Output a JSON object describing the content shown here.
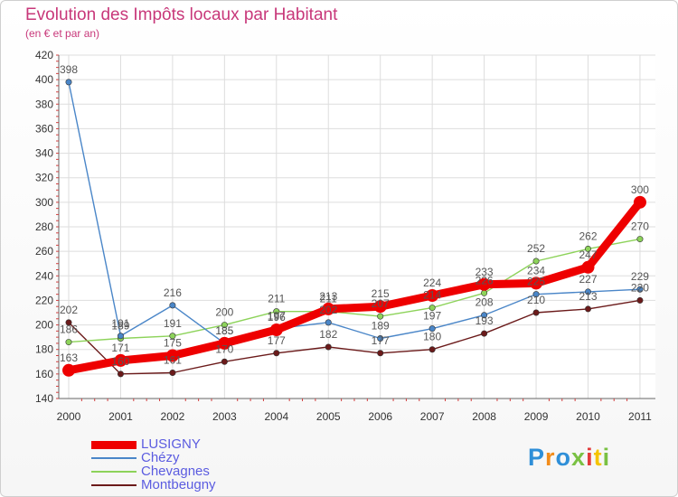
{
  "chart_data": {
    "type": "line",
    "title": "Evolution des Impôts locaux par Habitant",
    "subtitle": "(en € et par an)",
    "xlabel": "",
    "ylabel": "",
    "ylim": [
      140,
      420
    ],
    "yticks": [
      140,
      160,
      180,
      200,
      220,
      240,
      260,
      280,
      300,
      320,
      340,
      360,
      380,
      400,
      420
    ],
    "grid": true,
    "x": [
      "2000",
      "2001",
      "2002",
      "2003",
      "2004",
      "2005",
      "2006",
      "2007",
      "2008",
      "2009",
      "2010",
      "2011"
    ],
    "series": [
      {
        "name": "LUSIGNY",
        "color": "#ee0000",
        "values": [
          163,
          171,
          175,
          185,
          196,
          213,
          215,
          224,
          233,
          234,
          247,
          300
        ]
      },
      {
        "name": "Chézy",
        "color": "#4a86c8",
        "values": [
          398,
          191,
          216,
          185,
          197,
          202,
          189,
          197,
          208,
          225,
          227,
          229
        ]
      },
      {
        "name": "Chevagnes",
        "color": "#8dd35a",
        "values": [
          186,
          189,
          191,
          200,
          211,
          211,
          207,
          214,
          226,
          252,
          262,
          270
        ]
      },
      {
        "name": "Montbeugny",
        "color": "#6b1a1a",
        "values": [
          202,
          160,
          161,
          170,
          177,
          182,
          177,
          180,
          193,
          210,
          213,
          220
        ]
      }
    ],
    "legend_position": "bottom-left"
  },
  "logo": {
    "letters": [
      "P",
      "r",
      "o",
      "x",
      "i",
      "t",
      "i"
    ],
    "colors": [
      "#2f8fd8",
      "#f28c1a",
      "#2f8fd8",
      "#7ac143",
      "#e23a3a",
      "#f5c400",
      "#7ac143"
    ]
  }
}
